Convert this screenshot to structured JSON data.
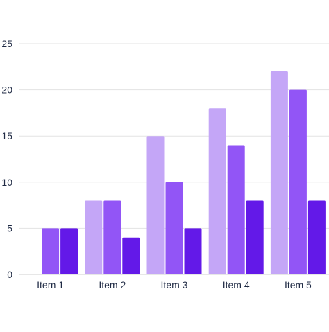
{
  "chart_data": {
    "type": "bar",
    "categories": [
      "Item 1",
      "Item 2",
      "Item 3",
      "Item 4",
      "Item 5"
    ],
    "series": [
      {
        "values": [
          0,
          8,
          15,
          18,
          22
        ],
        "color": "#c4a6f7"
      },
      {
        "values": [
          5,
          8,
          10,
          14,
          20
        ],
        "color": "#9255f6"
      },
      {
        "values": [
          5,
          4,
          5,
          8,
          8
        ],
        "color": "#6319e8"
      }
    ],
    "y_ticks": [
      0,
      5,
      10,
      15,
      20,
      25
    ],
    "ylim": [
      0,
      25
    ],
    "grid": true,
    "gridline_color": "#e3e3e3",
    "title": "",
    "xlabel": "",
    "ylabel": ""
  }
}
